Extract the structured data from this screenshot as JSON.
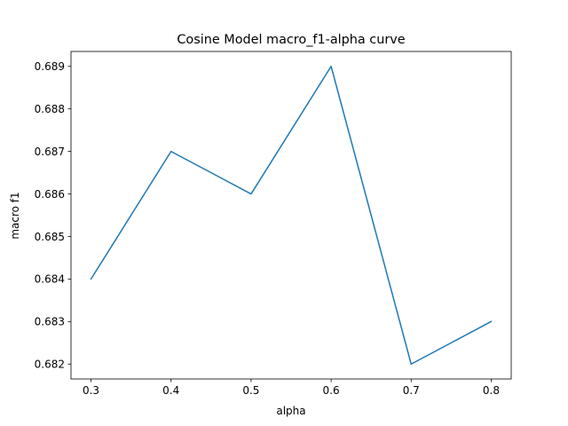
{
  "colors": {
    "line": "#1f77b4",
    "axes": "#000000",
    "background": "#ffffff"
  },
  "chart_data": {
    "type": "line",
    "title": "Cosine Model macro_f1-alpha curve",
    "xlabel": "alpha",
    "ylabel": "macro f1",
    "grid": false,
    "legend": "none",
    "xlim": [
      0.275,
      0.825
    ],
    "ylim": [
      0.68165,
      0.68935
    ],
    "x_ticks": [
      0.3,
      0.4,
      0.5,
      0.6,
      0.7,
      0.8
    ],
    "x_tick_labels": [
      "0.3",
      "0.4",
      "0.5",
      "0.6",
      "0.7",
      "0.8"
    ],
    "y_ticks": [
      0.682,
      0.683,
      0.684,
      0.685,
      0.686,
      0.687,
      0.688,
      0.689
    ],
    "y_tick_labels": [
      "0.682",
      "0.683",
      "0.684",
      "0.685",
      "0.686",
      "0.687",
      "0.688",
      "0.689"
    ],
    "series": [
      {
        "x": [
          0.3,
          0.4,
          0.5,
          0.6,
          0.7,
          0.8
        ],
        "values": [
          0.684,
          0.687,
          0.686,
          0.689,
          0.682,
          0.683
        ]
      }
    ]
  }
}
